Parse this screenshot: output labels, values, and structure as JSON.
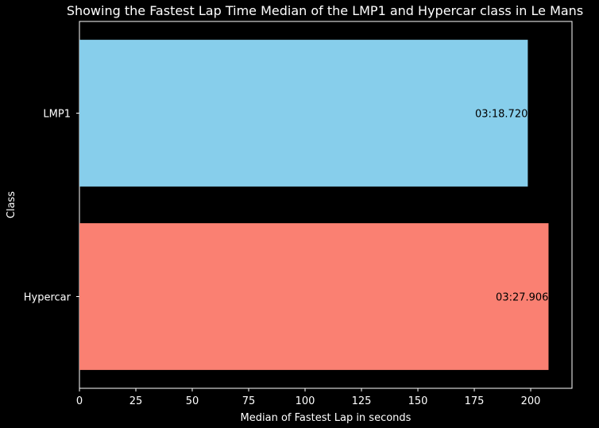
{
  "chart_data": {
    "type": "bar",
    "orientation": "horizontal",
    "title": "Showing the Fastest Lap Time Median of the LMP1 and Hypercar class in Le Mans",
    "xlabel": "Median of Fastest Lap in seconds",
    "ylabel": "Class",
    "categories": [
      "LMP1",
      "Hypercar"
    ],
    "values": [
      198.72,
      207.906
    ],
    "value_labels": [
      "03:18.720",
      "03:27.906"
    ],
    "colors": [
      "#87ceeb",
      "#fa8072"
    ],
    "xlim": [
      0,
      218.3
    ],
    "xticks": [
      0,
      25,
      50,
      75,
      100,
      125,
      150,
      175,
      200
    ],
    "xtick_labels": [
      "0",
      "25",
      "50",
      "75",
      "100",
      "125",
      "150",
      "175",
      "200"
    ],
    "grid": false,
    "background": "#000000",
    "foreground": "#ffffff"
  }
}
